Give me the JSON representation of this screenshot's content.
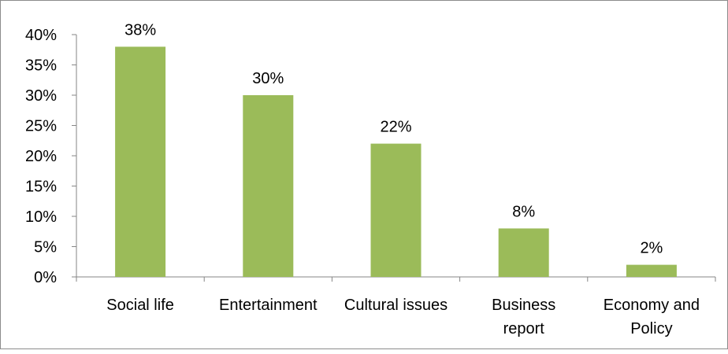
{
  "chart_data": {
    "type": "bar",
    "title": "",
    "xlabel": "",
    "ylabel": "",
    "categories": [
      [
        "Social life"
      ],
      [
        "Entertainment"
      ],
      [
        "Cultural issues"
      ],
      [
        "Business",
        "report"
      ],
      [
        "Economy and",
        "Policy"
      ]
    ],
    "values": [
      38,
      30,
      22,
      8,
      2
    ],
    "value_labels": [
      "38%",
      "30%",
      "22%",
      "8%",
      "2%"
    ],
    "y_ticks": [
      "0%",
      "5%",
      "10%",
      "15%",
      "20%",
      "25%",
      "30%",
      "35%",
      "40%"
    ],
    "ylim": [
      0,
      40
    ],
    "y_step": 5,
    "grid": false,
    "legend": "none",
    "bar_color": "#9BBB59"
  }
}
